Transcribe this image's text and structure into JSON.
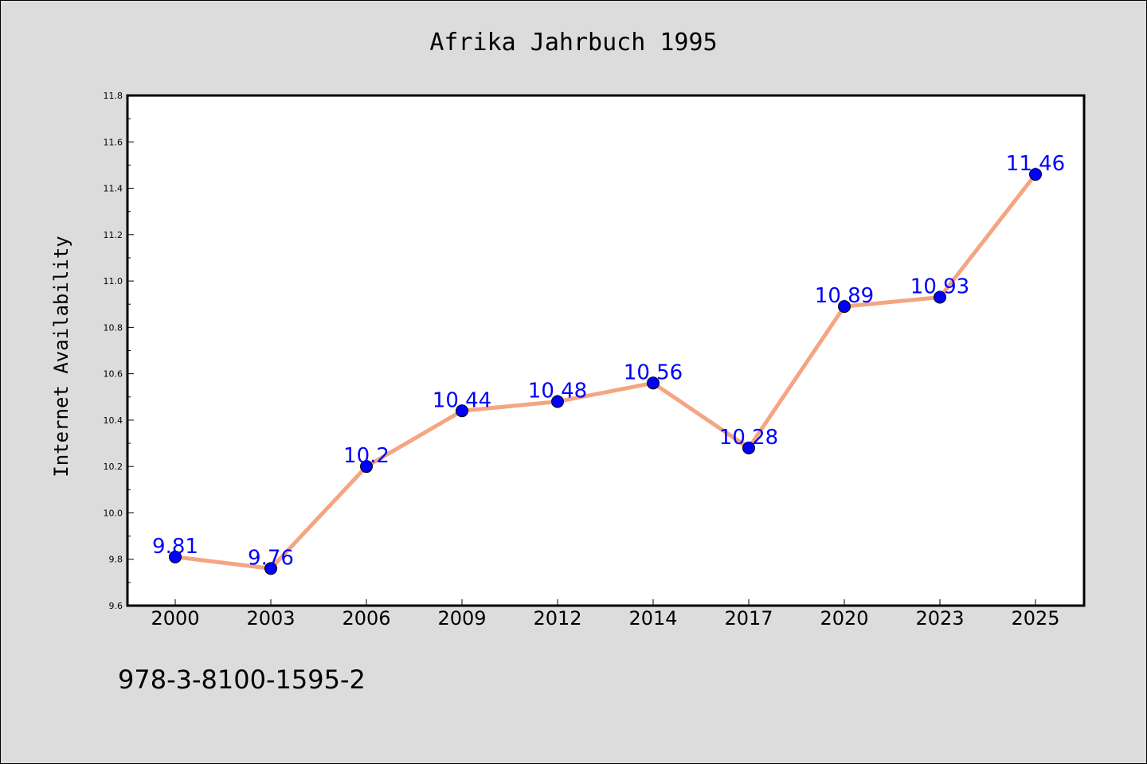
{
  "chart_data": {
    "type": "line",
    "title": "Afrika Jahrbuch 1995",
    "xlabel": "",
    "ylabel": "Internet Availability",
    "categories": [
      "2000",
      "2003",
      "2006",
      "2009",
      "2012",
      "2014",
      "2017",
      "2020",
      "2023",
      "2025"
    ],
    "series": [
      {
        "values": [
          9.81,
          9.76,
          10.2,
          10.44,
          10.48,
          10.56,
          10.28,
          10.89,
          10.93,
          11.46
        ],
        "data_labels": [
          "9.81",
          "9.76",
          "10.2",
          "10.44",
          "10.48",
          "10.56",
          "10.28",
          "10.89",
          "10.93",
          "11.46"
        ]
      }
    ],
    "ylim": [
      9.6,
      11.8
    ],
    "yticks": [
      "9.6",
      "9.8",
      "10.0",
      "10.2",
      "10.4",
      "10.6",
      "10.8",
      "11.0",
      "11.2",
      "11.4",
      "11.6",
      "11.8"
    ],
    "grid": false,
    "legend": "none",
    "colors": {
      "line": "#f4a582",
      "marker": "#0000ff",
      "label": "#0000ff",
      "background": "#dcdcdc",
      "plot_area": "#ffffff"
    }
  },
  "footnote": "978-3-8100-1595-2"
}
